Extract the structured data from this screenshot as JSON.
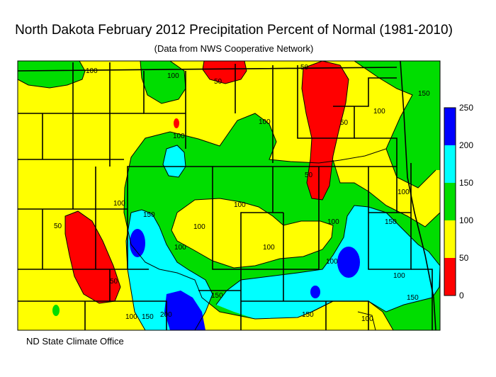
{
  "title": "North Dakota February 2012 Precipitation Percent of Normal (1981-2010)",
  "subtitle": "(Data from NWS Cooperative Network)",
  "footer": "ND State Climate Office",
  "legend": {
    "ticks": [
      "250",
      "200",
      "150",
      "100",
      "50",
      "0"
    ],
    "bins": [
      {
        "range": "0-50",
        "color": "#ff0000"
      },
      {
        "range": "50-100",
        "color": "#ffff00"
      },
      {
        "range": "100-150",
        "color": "#00dd00"
      },
      {
        "range": "150-200",
        "color": "#00ffff"
      },
      {
        "range": "200-250",
        "color": "#0000ff"
      }
    ]
  },
  "contour_labels": [
    "100",
    "100",
    "50",
    "50",
    "150",
    "100",
    "100",
    "50",
    "100",
    "100",
    "100",
    "100",
    "50",
    "50",
    "100",
    "150",
    "100",
    "150",
    "100",
    "100",
    "100",
    "150",
    "150",
    "150",
    "200",
    "150",
    "100",
    "50",
    "100",
    "100"
  ]
}
